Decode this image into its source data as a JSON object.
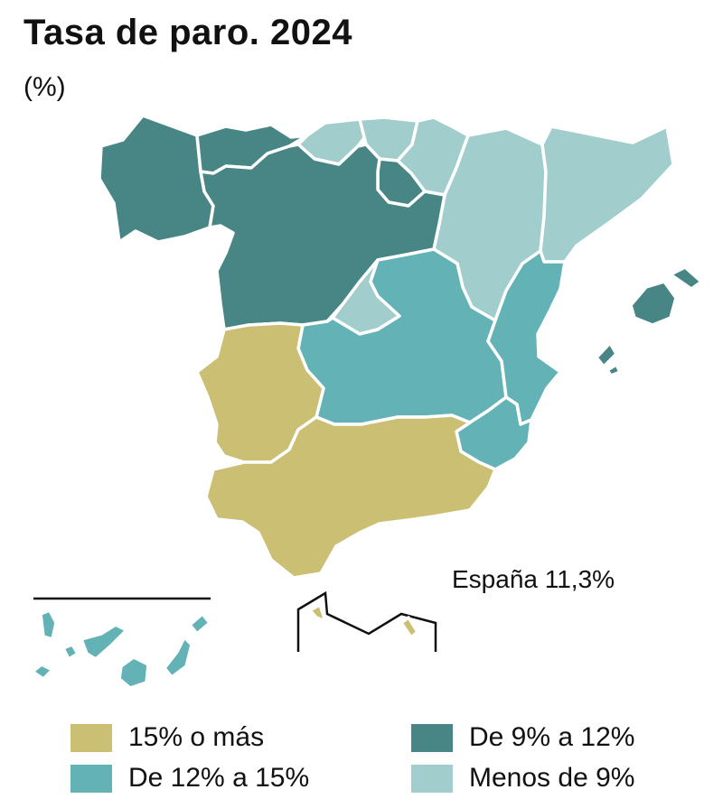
{
  "title": "Tasa de paro. 2024",
  "subtitle": "(%)",
  "national_total": "España 11,3%",
  "legend": [
    {
      "label": "15% o más",
      "color": "#cbbf74"
    },
    {
      "label": "De 12% a 15%",
      "color": "#62b2b6"
    },
    {
      "label": "De 9% a 12%",
      "color": "#478685"
    },
    {
      "label": "Menos de 9%",
      "color": "#a1cdcc"
    }
  ],
  "colors": {
    "c15_plus": "#cbbf74",
    "c12_15": "#62b2b6",
    "c9_12": "#478685",
    "c_under9": "#a1cdcc",
    "inset_border": "#111111"
  },
  "regions": [
    {
      "name": "Galicia",
      "class": "De 9% a 12%"
    },
    {
      "name": "Asturias",
      "class": "De 9% a 12%"
    },
    {
      "name": "Cantabria",
      "class": "Menos de 9%"
    },
    {
      "name": "País Vasco",
      "class": "Menos de 9%"
    },
    {
      "name": "Navarra",
      "class": "Menos de 9%"
    },
    {
      "name": "La Rioja",
      "class": "De 9% a 12%"
    },
    {
      "name": "Aragón",
      "class": "Menos de 9%"
    },
    {
      "name": "Cataluña",
      "class": "Menos de 9%"
    },
    {
      "name": "Castilla y León",
      "class": "De 9% a 12%"
    },
    {
      "name": "Madrid",
      "class": "Menos de 9%"
    },
    {
      "name": "Castilla-La Mancha",
      "class": "De 12% a 15%"
    },
    {
      "name": "Comunitat Valenciana",
      "class": "De 12% a 15%"
    },
    {
      "name": "Región de Murcia",
      "class": "De 12% a 15%"
    },
    {
      "name": "Extremadura",
      "class": "15% o más"
    },
    {
      "name": "Andalucía",
      "class": "15% o más"
    },
    {
      "name": "Illes Balears",
      "class": "De 9% a 12%"
    },
    {
      "name": "Canarias",
      "class": "De 12% a 15%"
    },
    {
      "name": "Ceuta",
      "class": "15% o más"
    },
    {
      "name": "Melilla",
      "class": "15% o más"
    }
  ]
}
